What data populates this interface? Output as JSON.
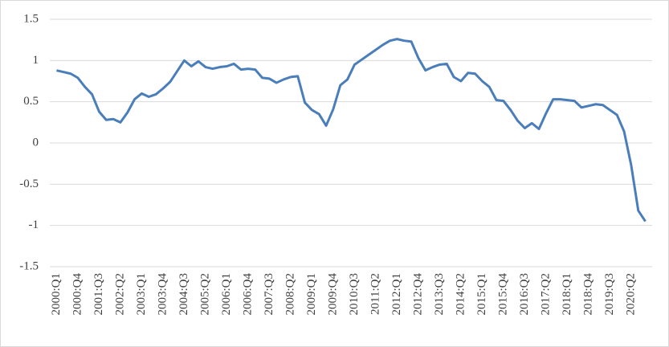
{
  "chart_data": {
    "type": "line",
    "categories": [
      "2000:Q1",
      null,
      null,
      "2000:Q4",
      null,
      null,
      "2001:Q3",
      null,
      null,
      "2002:Q2",
      null,
      null,
      "2003:Q1",
      null,
      null,
      "2003:Q4",
      null,
      null,
      "2004:Q3",
      null,
      null,
      "2005:Q2",
      null,
      null,
      "2006:Q1",
      null,
      null,
      "2006:Q4",
      null,
      null,
      "2007:Q3",
      null,
      null,
      "2008:Q2",
      null,
      null,
      "2009:Q1",
      null,
      null,
      "2009:Q4",
      null,
      null,
      "2010:Q3",
      null,
      null,
      "2011:Q2",
      null,
      null,
      "2012:Q1",
      null,
      null,
      "2012:Q4",
      null,
      null,
      "2013:Q3",
      null,
      null,
      "2014:Q2",
      null,
      null,
      "2015:Q1",
      null,
      null,
      "2015:Q4",
      null,
      null,
      "2016:Q3",
      null,
      null,
      "2017:Q2",
      null,
      null,
      "2018:Q1",
      null,
      null,
      "2018:Q4",
      null,
      null,
      "2019:Q3",
      null,
      null,
      "2020:Q2",
      null,
      null
    ],
    "series": [
      {
        "color": "#4a7ebb",
        "values": [
          0.88,
          0.86,
          0.84,
          0.79,
          0.68,
          0.59,
          0.38,
          0.28,
          0.29,
          0.25,
          0.37,
          0.53,
          0.6,
          0.56,
          0.59,
          0.66,
          0.74,
          0.87,
          1.0,
          0.93,
          0.99,
          0.92,
          0.9,
          0.92,
          0.93,
          0.96,
          0.89,
          0.9,
          0.89,
          0.79,
          0.78,
          0.73,
          0.77,
          0.8,
          0.81,
          0.49,
          0.4,
          0.35,
          0.21,
          0.41,
          0.7,
          0.77,
          0.95,
          1.01,
          1.07,
          1.13,
          1.19,
          1.24,
          1.26,
          1.24,
          1.23,
          1.03,
          0.88,
          0.92,
          0.95,
          0.96,
          0.8,
          0.75,
          0.85,
          0.84,
          0.75,
          0.68,
          0.52,
          0.51,
          0.4,
          0.27,
          0.18,
          0.24,
          0.17,
          0.36,
          0.53,
          0.53,
          0.52,
          0.51,
          0.43,
          0.45,
          0.47,
          0.46,
          0.4,
          0.34,
          0.14,
          -0.27,
          -0.82,
          -0.95
        ]
      }
    ],
    "ylim": [
      -1.5,
      1.5
    ],
    "yticks": [
      1.5,
      1,
      0.5,
      0,
      -0.5,
      -1,
      -1.5
    ],
    "grid": true
  }
}
